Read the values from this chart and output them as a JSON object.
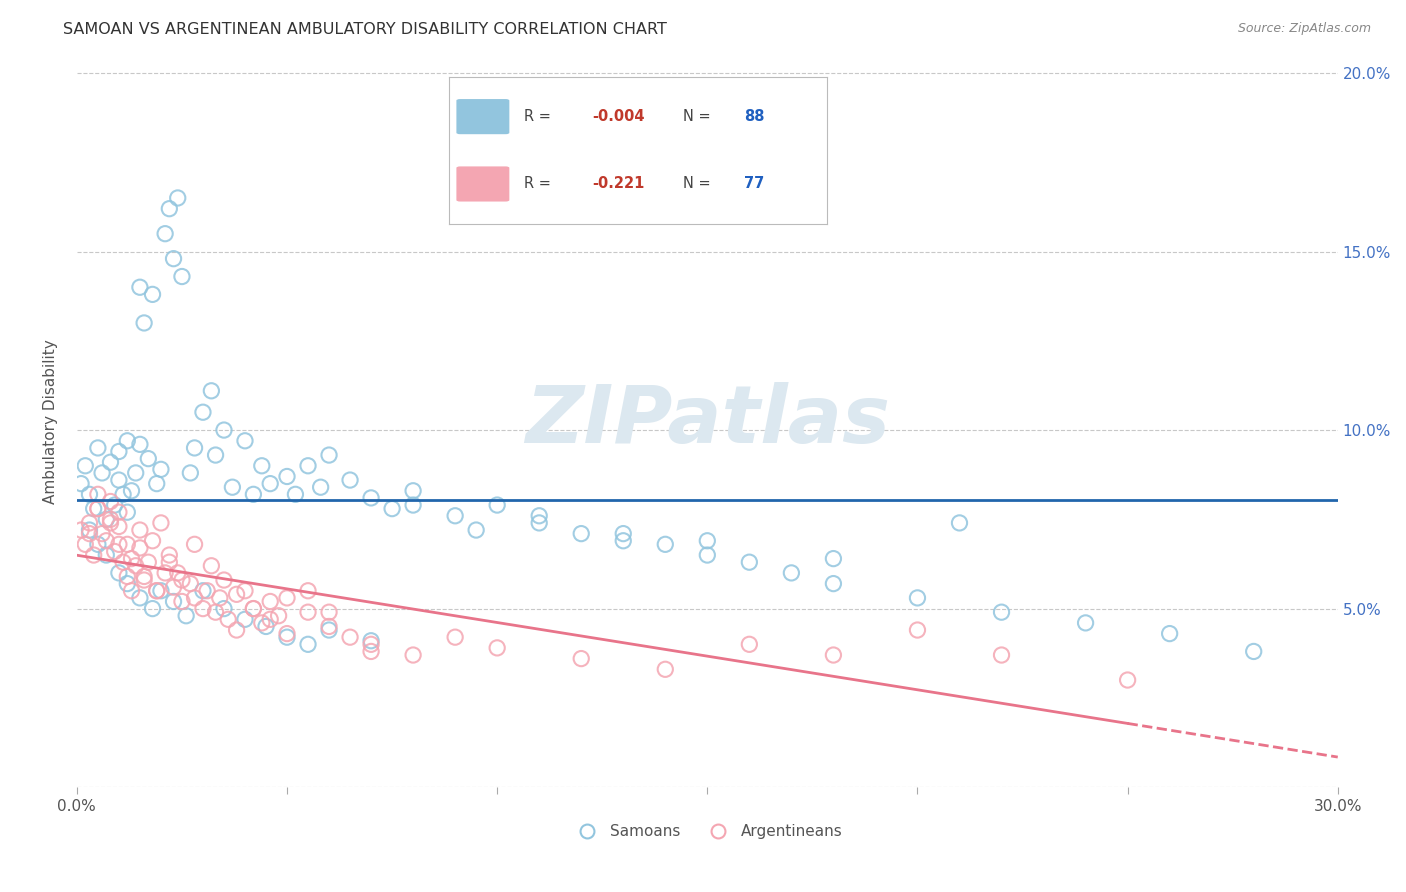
{
  "title": "SAMOAN VS ARGENTINEAN AMBULATORY DISABILITY CORRELATION CHART",
  "source": "Source: ZipAtlas.com",
  "ylabel": "Ambulatory Disability",
  "x_min": 0.0,
  "x_max": 0.3,
  "y_min": 0.0,
  "y_max": 0.205,
  "samoans_color": "#92c5de",
  "argentineans_color": "#f4a6b2",
  "regression_samoan_color": "#2166ac",
  "regression_argentinean_color": "#e8748a",
  "watermark_color": "#dce8f0",
  "legend_R_samoan": "-0.004",
  "legend_N_samoan": "88",
  "legend_R_argentinean": "-0.221",
  "legend_N_argentinean": "77",
  "samoans_x": [
    0.001,
    0.002,
    0.003,
    0.004,
    0.005,
    0.006,
    0.007,
    0.008,
    0.009,
    0.01,
    0.01,
    0.011,
    0.012,
    0.012,
    0.013,
    0.014,
    0.015,
    0.015,
    0.016,
    0.017,
    0.018,
    0.019,
    0.02,
    0.021,
    0.022,
    0.023,
    0.024,
    0.025,
    0.027,
    0.028,
    0.03,
    0.032,
    0.033,
    0.035,
    0.037,
    0.04,
    0.042,
    0.044,
    0.046,
    0.05,
    0.052,
    0.055,
    0.058,
    0.06,
    0.065,
    0.07,
    0.075,
    0.08,
    0.09,
    0.1,
    0.11,
    0.12,
    0.13,
    0.14,
    0.15,
    0.16,
    0.17,
    0.18,
    0.2,
    0.22,
    0.24,
    0.26,
    0.28,
    0.003,
    0.005,
    0.007,
    0.01,
    0.012,
    0.015,
    0.018,
    0.02,
    0.023,
    0.026,
    0.03,
    0.035,
    0.04,
    0.045,
    0.05,
    0.055,
    0.06,
    0.07,
    0.08,
    0.095,
    0.11,
    0.13,
    0.15,
    0.18,
    0.21
  ],
  "samoans_y": [
    0.085,
    0.09,
    0.082,
    0.078,
    0.095,
    0.088,
    0.075,
    0.091,
    0.079,
    0.086,
    0.094,
    0.082,
    0.077,
    0.097,
    0.083,
    0.088,
    0.14,
    0.096,
    0.13,
    0.092,
    0.138,
    0.085,
    0.089,
    0.155,
    0.162,
    0.148,
    0.165,
    0.143,
    0.088,
    0.095,
    0.105,
    0.111,
    0.093,
    0.1,
    0.084,
    0.097,
    0.082,
    0.09,
    0.085,
    0.087,
    0.082,
    0.09,
    0.084,
    0.093,
    0.086,
    0.081,
    0.078,
    0.083,
    0.076,
    0.079,
    0.074,
    0.071,
    0.069,
    0.068,
    0.065,
    0.063,
    0.06,
    0.057,
    0.053,
    0.049,
    0.046,
    0.043,
    0.038,
    0.072,
    0.068,
    0.065,
    0.06,
    0.057,
    0.053,
    0.05,
    0.055,
    0.052,
    0.048,
    0.055,
    0.05,
    0.047,
    0.045,
    0.042,
    0.04,
    0.044,
    0.041,
    0.079,
    0.072,
    0.076,
    0.071,
    0.069,
    0.064,
    0.074
  ],
  "argentineans_x": [
    0.001,
    0.002,
    0.003,
    0.004,
    0.005,
    0.005,
    0.006,
    0.007,
    0.008,
    0.008,
    0.009,
    0.01,
    0.01,
    0.011,
    0.012,
    0.012,
    0.013,
    0.014,
    0.015,
    0.015,
    0.016,
    0.017,
    0.018,
    0.019,
    0.02,
    0.021,
    0.022,
    0.023,
    0.024,
    0.025,
    0.027,
    0.028,
    0.03,
    0.031,
    0.033,
    0.034,
    0.036,
    0.038,
    0.04,
    0.042,
    0.044,
    0.046,
    0.048,
    0.05,
    0.055,
    0.06,
    0.065,
    0.07,
    0.08,
    0.09,
    0.1,
    0.12,
    0.14,
    0.16,
    0.18,
    0.2,
    0.22,
    0.25,
    0.003,
    0.005,
    0.008,
    0.01,
    0.013,
    0.016,
    0.019,
    0.022,
    0.025,
    0.028,
    0.032,
    0.035,
    0.038,
    0.042,
    0.046,
    0.05,
    0.055,
    0.06,
    0.07
  ],
  "argentineans_y": [
    0.072,
    0.068,
    0.074,
    0.065,
    0.078,
    0.082,
    0.071,
    0.069,
    0.075,
    0.08,
    0.066,
    0.073,
    0.077,
    0.063,
    0.059,
    0.068,
    0.055,
    0.062,
    0.067,
    0.072,
    0.058,
    0.063,
    0.069,
    0.055,
    0.074,
    0.06,
    0.065,
    0.056,
    0.06,
    0.052,
    0.057,
    0.053,
    0.05,
    0.055,
    0.049,
    0.053,
    0.047,
    0.044,
    0.055,
    0.05,
    0.046,
    0.052,
    0.048,
    0.053,
    0.049,
    0.045,
    0.042,
    0.04,
    0.037,
    0.042,
    0.039,
    0.036,
    0.033,
    0.04,
    0.037,
    0.044,
    0.037,
    0.03,
    0.071,
    0.078,
    0.074,
    0.068,
    0.064,
    0.059,
    0.055,
    0.063,
    0.058,
    0.068,
    0.062,
    0.058,
    0.054,
    0.05,
    0.047,
    0.043,
    0.055,
    0.049,
    0.038
  ]
}
